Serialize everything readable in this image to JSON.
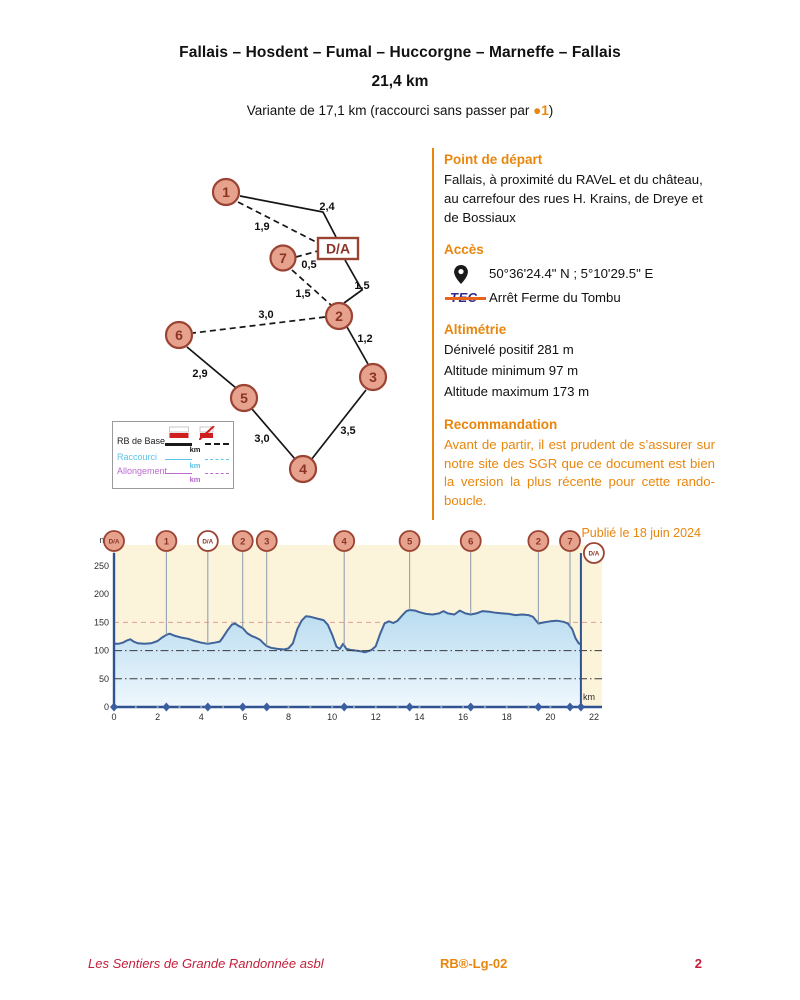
{
  "header": {
    "title": "Fallais – Hosdent – Fumal – Huccorgne – Marneffe – Fallais",
    "distance": "21,4 km",
    "variant_prefix": "Variante de 17,1 km (raccourci sans passer par ",
    "variant_marker": "●1",
    "variant_suffix": ")"
  },
  "info": {
    "depart_heading": "Point de départ",
    "depart_text": "Fallais, à proximité du RAVeL et du château, au carrefour des rues H. Krains, de Dreye et de Bossiaux",
    "acces_heading": "Accès",
    "gps": "50°36'24.4\" N ; 5°10'29.5\" E",
    "tec_label": "TEC",
    "tec_stop": "Arrêt Ferme du Tombu",
    "alti_heading": "Altimétrie",
    "alti_lines": [
      "Dénivelé positif 281 m",
      "Altitude minimum 97 m",
      "Altitude maximum 173 m"
    ],
    "reco_heading": "Recommandation",
    "reco_text": "Avant de partir, il est prudent de s’assurer sur notre site des SGR que ce document est bien la version la plus récente pour cette rando-boucle.",
    "published": "Publié le 18 juin 2024"
  },
  "map": {
    "nodes": [
      {
        "label": "1"
      },
      {
        "label": "7"
      },
      {
        "label": "2"
      },
      {
        "label": "6"
      },
      {
        "label": "3"
      },
      {
        "label": "5"
      },
      {
        "label": "4"
      },
      {
        "label": "D/A"
      }
    ],
    "distances": [
      "2,4",
      "1,9",
      "0,5",
      "1,5",
      "1,5",
      "3,0",
      "1,2",
      "2,9",
      "3,5",
      "3,0"
    ],
    "legend": {
      "rows": [
        {
          "label": "RB de Base",
          "unit": "km",
          "color": "#1a1a1a"
        },
        {
          "label": "Raccourci",
          "unit": "km",
          "color": "#5cc4e6"
        },
        {
          "label": "Allongement",
          "unit": "km",
          "color": "#bb6ace"
        }
      ]
    }
  },
  "chart_data": {
    "type": "area",
    "xlabel": "km",
    "ylabel": "m",
    "xlim": [
      0,
      22
    ],
    "ylim": [
      0,
      287
    ],
    "x_ticks": [
      0,
      2,
      4,
      6,
      8,
      10,
      12,
      14,
      16,
      18,
      20,
      22
    ],
    "y_ticks": [
      0,
      50,
      100,
      150,
      200,
      250
    ],
    "gridlines": [
      {
        "value": 150,
        "color": "#e0a094",
        "dash": "5 4",
        "under": true
      },
      {
        "value": 100,
        "color": "#3a3a3a",
        "dash": "8 3 1.5 3",
        "under": false
      },
      {
        "value": 50,
        "color": "#3a3a3a",
        "dash": "8 3 1.5 3",
        "under": false
      }
    ],
    "markers": [
      {
        "label": "D/A",
        "km": 0,
        "fill": "salmon"
      },
      {
        "label": "1",
        "km": 2.4,
        "fill": "salmon"
      },
      {
        "label": "D/A",
        "km": 4.3,
        "fill": "white"
      },
      {
        "label": "2",
        "km": 5.9,
        "fill": "salmon"
      },
      {
        "label": "3",
        "km": 7.0,
        "fill": "salmon"
      },
      {
        "label": "4",
        "km": 10.55,
        "fill": "salmon"
      },
      {
        "label": "5",
        "km": 13.55,
        "fill": "salmon"
      },
      {
        "label": "6",
        "km": 16.35,
        "fill": "salmon"
      },
      {
        "label": "2",
        "km": 19.45,
        "fill": "salmon"
      },
      {
        "label": "7",
        "km": 20.9,
        "fill": "salmon"
      },
      {
        "label": "D/A",
        "km": 21.4,
        "fill": "white",
        "end": true,
        "dx": 13,
        "dy": 12
      }
    ],
    "profile": [
      [
        0,
        112
      ],
      [
        0.2,
        112
      ],
      [
        0.4,
        114
      ],
      [
        0.6,
        118
      ],
      [
        0.75,
        120
      ],
      [
        0.9,
        116
      ],
      [
        1.1,
        113
      ],
      [
        1.4,
        112
      ],
      [
        1.7,
        113
      ],
      [
        2.0,
        117
      ],
      [
        2.2,
        123
      ],
      [
        2.4,
        128
      ],
      [
        2.55,
        130
      ],
      [
        2.8,
        126
      ],
      [
        3.1,
        123
      ],
      [
        3.4,
        121
      ],
      [
        3.7,
        117
      ],
      [
        4.0,
        114
      ],
      [
        4.3,
        112
      ],
      [
        4.6,
        114
      ],
      [
        4.85,
        116
      ],
      [
        5.0,
        124
      ],
      [
        5.2,
        136
      ],
      [
        5.4,
        146
      ],
      [
        5.55,
        148
      ],
      [
        5.7,
        144
      ],
      [
        5.9,
        140
      ],
      [
        6.1,
        131
      ],
      [
        6.3,
        126
      ],
      [
        6.5,
        123
      ],
      [
        6.7,
        119
      ],
      [
        6.85,
        113
      ],
      [
        7.0,
        108
      ],
      [
        7.2,
        105
      ],
      [
        7.5,
        103
      ],
      [
        7.8,
        102
      ],
      [
        8.0,
        104
      ],
      [
        8.2,
        113
      ],
      [
        8.4,
        138
      ],
      [
        8.6,
        153
      ],
      [
        8.8,
        161
      ],
      [
        9.0,
        160
      ],
      [
        9.3,
        157
      ],
      [
        9.6,
        154
      ],
      [
        9.8,
        146
      ],
      [
        10.0,
        128
      ],
      [
        10.2,
        107
      ],
      [
        10.35,
        103
      ],
      [
        10.5,
        112
      ],
      [
        10.65,
        103
      ],
      [
        10.85,
        101
      ],
      [
        11.1,
        100
      ],
      [
        11.3,
        99
      ],
      [
        11.5,
        97
      ],
      [
        11.8,
        101
      ],
      [
        12.0,
        108
      ],
      [
        12.2,
        130
      ],
      [
        12.4,
        148
      ],
      [
        12.6,
        152
      ],
      [
        12.8,
        149
      ],
      [
        13.0,
        153
      ],
      [
        13.2,
        162
      ],
      [
        13.4,
        170
      ],
      [
        13.55,
        172
      ],
      [
        13.8,
        171
      ],
      [
        14.0,
        168
      ],
      [
        14.3,
        165
      ],
      [
        14.6,
        164
      ],
      [
        14.9,
        166
      ],
      [
        15.1,
        170
      ],
      [
        15.3,
        166
      ],
      [
        15.6,
        164
      ],
      [
        15.85,
        171
      ],
      [
        16.1,
        166
      ],
      [
        16.35,
        164
      ],
      [
        16.6,
        166
      ],
      [
        16.9,
        170
      ],
      [
        17.2,
        169
      ],
      [
        17.5,
        167
      ],
      [
        17.8,
        166
      ],
      [
        18.1,
        165
      ],
      [
        18.4,
        163
      ],
      [
        18.7,
        164
      ],
      [
        19.0,
        163
      ],
      [
        19.2,
        160
      ],
      [
        19.45,
        148
      ],
      [
        19.7,
        150
      ],
      [
        20.0,
        152
      ],
      [
        20.3,
        153
      ],
      [
        20.6,
        151
      ],
      [
        20.8,
        148
      ],
      [
        21.0,
        138
      ],
      [
        21.15,
        122
      ],
      [
        21.3,
        113
      ],
      [
        21.4,
        111
      ]
    ]
  },
  "footer": {
    "left": "Les Sentiers de Grande Randonnée asbl",
    "center": "RB®-Lg-02",
    "page": "2"
  },
  "colors": {
    "accent_orange": "#e8860d",
    "footer_red": "#c41e3a",
    "node_fill": "#e7a28d",
    "node_border": "#9c4434",
    "chart_bg": "#fbf3da",
    "curve": "#3f639b",
    "axis_blue": "#2f5291"
  }
}
